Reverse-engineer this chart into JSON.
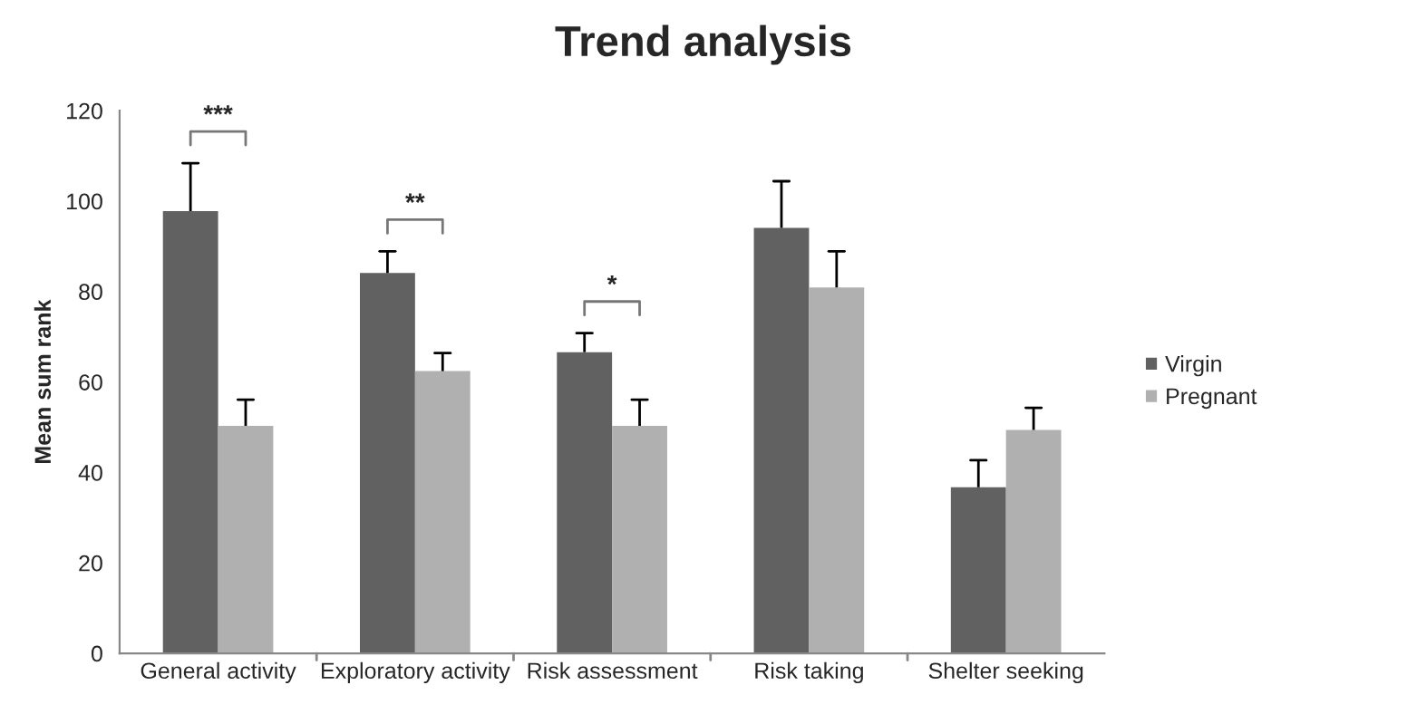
{
  "chart_data": {
    "type": "bar",
    "title": "Trend analysis",
    "ylabel": "Mean sum rank",
    "categories": [
      "General activity",
      "Exploratory activity",
      "Risk assessment",
      "Risk taking",
      "Shelter seeking"
    ],
    "series": [
      {
        "name": "Virgin",
        "color": "#616161",
        "values": [
          97.8,
          84.1,
          66.6,
          94.1,
          36.7
        ],
        "errors": [
          [
            97.8,
            108.4
          ],
          [
            84.1,
            88.9
          ],
          [
            66.6,
            70.8
          ],
          [
            94.1,
            104.4
          ],
          [
            36.7,
            42.7
          ]
        ]
      },
      {
        "name": "Pregnant",
        "color": "#b0b0b0",
        "values": [
          50.3,
          62.4,
          50.3,
          80.9,
          49.4
        ],
        "errors": [
          [
            50.3,
            56.1
          ],
          [
            62.4,
            66.4
          ],
          [
            50.3,
            56.1
          ],
          [
            80.9,
            88.9
          ],
          [
            49.4,
            54.3
          ]
        ]
      }
    ],
    "ylim": [
      0,
      120
    ],
    "yticks": [
      0,
      20,
      40,
      60,
      80,
      100,
      120
    ],
    "grid": false,
    "legend": "right",
    "annotations": [
      "***",
      "**",
      "*"
    ]
  }
}
